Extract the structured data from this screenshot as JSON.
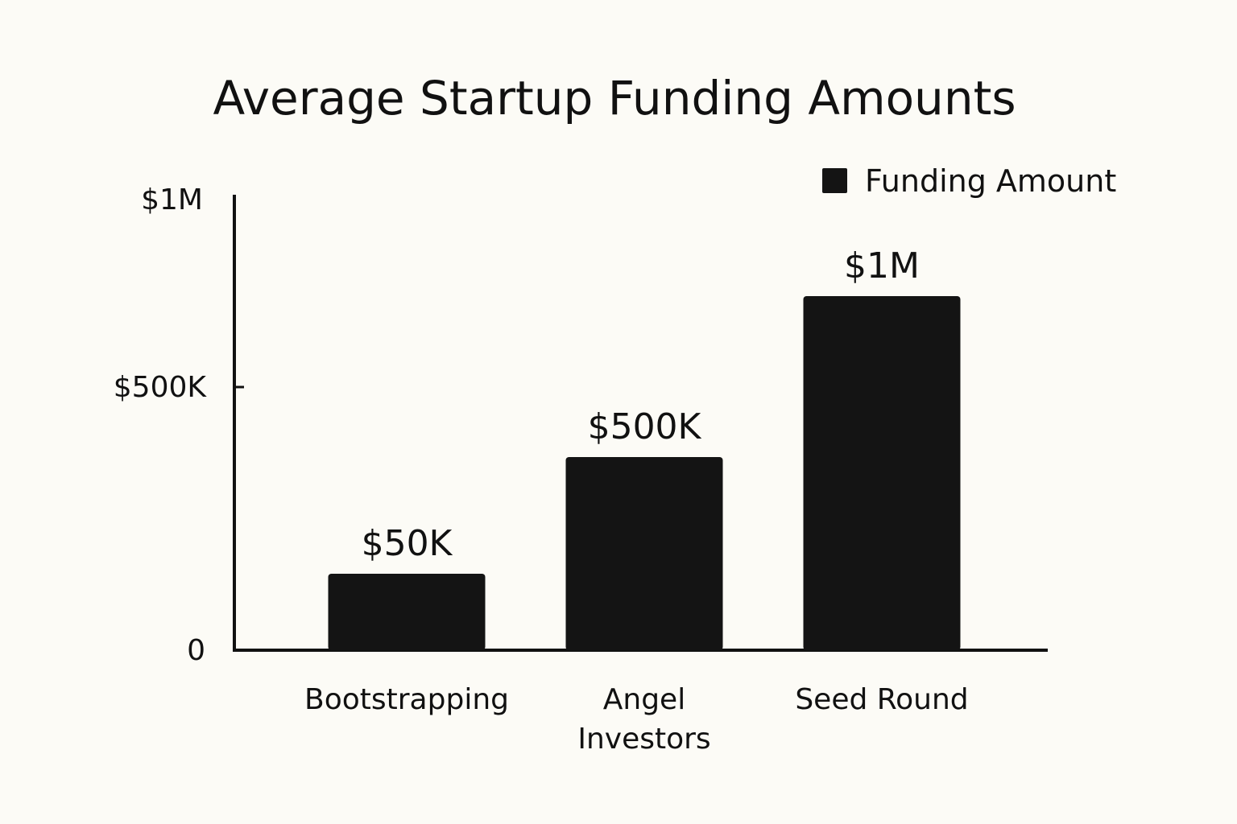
{
  "chart_data": {
    "type": "bar",
    "title": "Average Startup Funding Amounts",
    "xlabel": "",
    "ylabel": "",
    "categories": [
      "Bootstrapping",
      "Angel Investors",
      "Seed Round"
    ],
    "category_lines": [
      [
        "Bootstrapping"
      ],
      [
        "Angel",
        "Investors"
      ],
      [
        "Seed Round"
      ]
    ],
    "series": [
      {
        "name": "Funding Amount",
        "values": [
          50000,
          500000,
          1000000
        ],
        "data_labels": [
          "$50K",
          "$500K",
          "$1M"
        ],
        "color": "#141414"
      }
    ],
    "y_ticks": [
      {
        "value": 0,
        "label": "0"
      },
      {
        "value": 500000,
        "label": "$500K"
      },
      {
        "value": 1000000,
        "label": "$1M"
      }
    ],
    "ylim": [
      0,
      1000000
    ],
    "grid": false,
    "legend_position": "top-right"
  },
  "colors": {
    "background": "#fcfbf6",
    "ink": "#111111"
  }
}
